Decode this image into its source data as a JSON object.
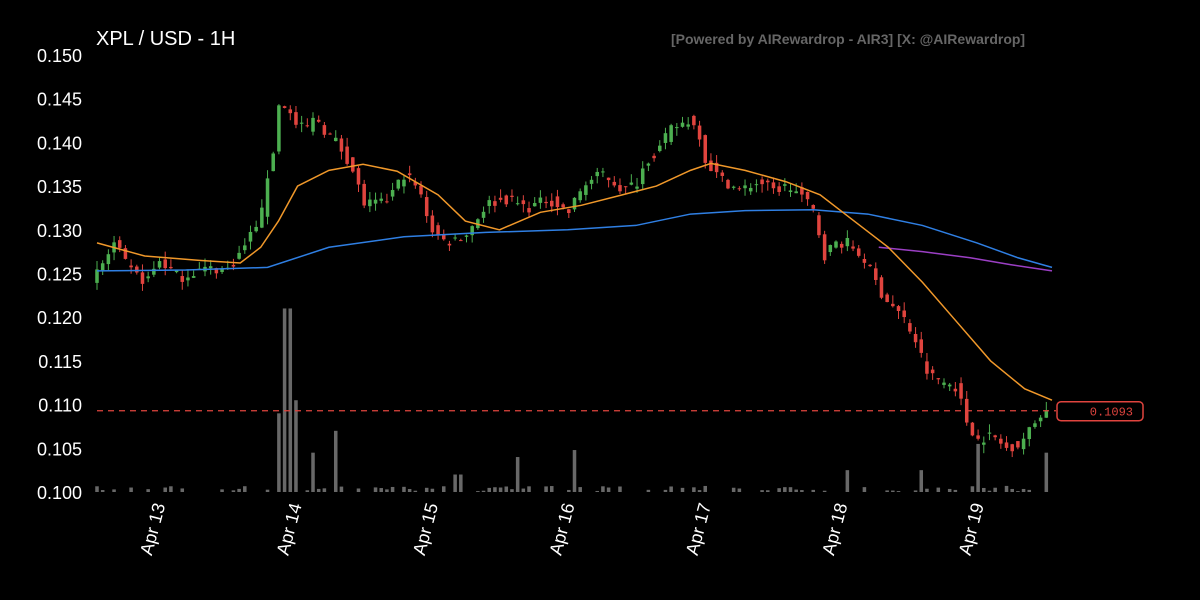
{
  "header": {
    "title": "XPL / USD - 1H",
    "credit": "[Powered by AIRewardrop - AIR3] [X: @AIRewardrop]"
  },
  "colors": {
    "background": "#000000",
    "up": "#4caf50",
    "down": "#e0443e",
    "ma_fast": "#f0982a",
    "ma_mid": "#2f7fe3",
    "ma_long": "#9b3fc4",
    "volume": "#7a7a7a",
    "price_line": "#e0443e"
  },
  "chart_data": {
    "type": "candlestick",
    "title": "XPL / USD - 1H",
    "y_ticks": [
      "0.100",
      "0.105",
      "0.110",
      "0.115",
      "0.120",
      "0.125",
      "0.130",
      "0.135",
      "0.140",
      "0.145",
      "0.150"
    ],
    "ylim": [
      0.1,
      0.15
    ],
    "x_ticks": [
      "Apr 13",
      "Apr 14",
      "Apr 15",
      "Apr 16",
      "Apr 17",
      "Apr 18",
      "Apr 19"
    ],
    "x_range_days": [
      12.55,
      19.55
    ],
    "last_price_label": "0.1093",
    "last_price": 0.1093,
    "price_path": [
      [
        12.55,
        0.124
      ],
      [
        12.65,
        0.1265
      ],
      [
        12.72,
        0.1285
      ],
      [
        12.82,
        0.1255
      ],
      [
        12.95,
        0.124
      ],
      [
        13.05,
        0.1265
      ],
      [
        13.2,
        0.1245
      ],
      [
        13.35,
        0.1255
      ],
      [
        13.55,
        0.1255
      ],
      [
        13.65,
        0.1275
      ],
      [
        13.72,
        0.1295
      ],
      [
        13.8,
        0.132
      ],
      [
        13.85,
        0.137
      ],
      [
        13.9,
        0.14
      ],
      [
        13.93,
        0.145
      ],
      [
        13.98,
        0.144
      ],
      [
        14.05,
        0.142
      ],
      [
        14.12,
        0.1415
      ],
      [
        14.2,
        0.143
      ],
      [
        14.25,
        0.1415
      ],
      [
        14.35,
        0.14
      ],
      [
        14.45,
        0.1375
      ],
      [
        14.55,
        0.133
      ],
      [
        14.7,
        0.133
      ],
      [
        14.85,
        0.1365
      ],
      [
        14.95,
        0.1345
      ],
      [
        15.05,
        0.13
      ],
      [
        15.15,
        0.1285
      ],
      [
        15.3,
        0.1295
      ],
      [
        15.45,
        0.133
      ],
      [
        15.6,
        0.1335
      ],
      [
        15.75,
        0.1325
      ],
      [
        15.9,
        0.1335
      ],
      [
        16.05,
        0.132
      ],
      [
        16.15,
        0.135
      ],
      [
        16.3,
        0.1365
      ],
      [
        16.45,
        0.1345
      ],
      [
        16.55,
        0.1355
      ],
      [
        16.62,
        0.138
      ],
      [
        16.7,
        0.139
      ],
      [
        16.8,
        0.1415
      ],
      [
        16.92,
        0.1425
      ],
      [
        17.0,
        0.1415
      ],
      [
        17.05,
        0.138
      ],
      [
        17.15,
        0.136
      ],
      [
        17.3,
        0.1345
      ],
      [
        17.45,
        0.1355
      ],
      [
        17.55,
        0.1345
      ],
      [
        17.65,
        0.135
      ],
      [
        17.75,
        0.134
      ],
      [
        17.85,
        0.132
      ],
      [
        17.92,
        0.127
      ],
      [
        18.0,
        0.1285
      ],
      [
        18.1,
        0.1285
      ],
      [
        18.22,
        0.1265
      ],
      [
        18.35,
        0.1225
      ],
      [
        18.5,
        0.12
      ],
      [
        18.6,
        0.117
      ],
      [
        18.68,
        0.1135
      ],
      [
        18.8,
        0.1125
      ],
      [
        18.9,
        0.112
      ],
      [
        18.95,
        0.1085
      ],
      [
        19.05,
        0.106
      ],
      [
        19.15,
        0.1065
      ],
      [
        19.25,
        0.105
      ],
      [
        19.35,
        0.1055
      ],
      [
        19.45,
        0.1075
      ],
      [
        19.52,
        0.1093
      ]
    ],
    "volume_spikes": [
      [
        13.87,
        0.009
      ],
      [
        13.95,
        0.021
      ],
      [
        14.02,
        0.0105
      ],
      [
        14.15,
        0.0045
      ],
      [
        14.3,
        0.007
      ],
      [
        15.2,
        0.002
      ],
      [
        15.65,
        0.004
      ],
      [
        16.05,
        0.0048
      ],
      [
        18.05,
        0.0025
      ],
      [
        18.6,
        0.0025
      ],
      [
        19.0,
        0.0055
      ],
      [
        19.52,
        0.0045
      ]
    ],
    "ma_fast": [
      [
        12.55,
        0.1285
      ],
      [
        12.9,
        0.127
      ],
      [
        13.3,
        0.1265
      ],
      [
        13.6,
        0.1262
      ],
      [
        13.75,
        0.128
      ],
      [
        13.88,
        0.131
      ],
      [
        14.02,
        0.135
      ],
      [
        14.25,
        0.1368
      ],
      [
        14.5,
        0.1375
      ],
      [
        14.75,
        0.1367
      ],
      [
        15.05,
        0.134
      ],
      [
        15.25,
        0.131
      ],
      [
        15.5,
        0.13
      ],
      [
        15.8,
        0.132
      ],
      [
        16.1,
        0.1328
      ],
      [
        16.4,
        0.134
      ],
      [
        16.65,
        0.135
      ],
      [
        16.9,
        0.1368
      ],
      [
        17.05,
        0.1376
      ],
      [
        17.3,
        0.1368
      ],
      [
        17.6,
        0.1355
      ],
      [
        17.85,
        0.134
      ],
      [
        18.1,
        0.131
      ],
      [
        18.35,
        0.128
      ],
      [
        18.6,
        0.124
      ],
      [
        18.85,
        0.1195
      ],
      [
        19.1,
        0.115
      ],
      [
        19.35,
        0.1118
      ],
      [
        19.55,
        0.1105
      ]
    ],
    "ma_mid": [
      [
        12.55,
        0.1253
      ],
      [
        13.2,
        0.1254
      ],
      [
        13.8,
        0.1257
      ],
      [
        14.25,
        0.128
      ],
      [
        14.8,
        0.1292
      ],
      [
        15.4,
        0.1297
      ],
      [
        16.0,
        0.13
      ],
      [
        16.5,
        0.1305
      ],
      [
        16.9,
        0.1318
      ],
      [
        17.3,
        0.1322
      ],
      [
        17.8,
        0.1323
      ],
      [
        18.2,
        0.1318
      ],
      [
        18.6,
        0.1305
      ],
      [
        19.0,
        0.1285
      ],
      [
        19.3,
        0.1268
      ],
      [
        19.55,
        0.1257
      ]
    ],
    "ma_long": [
      [
        18.28,
        0.128
      ],
      [
        18.6,
        0.1275
      ],
      [
        18.95,
        0.1268
      ],
      [
        19.25,
        0.126
      ],
      [
        19.55,
        0.1253
      ]
    ]
  }
}
